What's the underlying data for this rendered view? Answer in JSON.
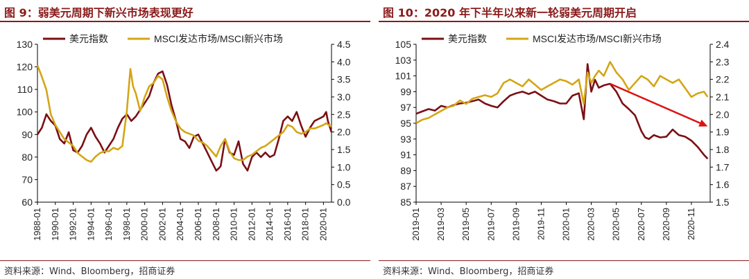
{
  "chart_data": [
    {
      "type": "line",
      "title": "图 9：弱美元周期下新兴市场表现更好",
      "source": "资料来源：Wind、Bloomberg，招商证券",
      "legend": [
        "美元指数",
        "MSCI发达市场/MSCI新兴市场"
      ],
      "colors": {
        "usd": "#7a0f14",
        "msci": "#d4a514"
      },
      "x_ticks": [
        "1988-01",
        "1990-01",
        "1992-01",
        "1994-01",
        "1996-01",
        "1998-01",
        "2000-01",
        "2002-01",
        "2004-01",
        "2006-01",
        "2008-01",
        "2010-01",
        "2012-01",
        "2014-01",
        "2016-01",
        "2018-01",
        "2020-01"
      ],
      "x_range": [
        1988.0,
        2020.9
      ],
      "y_left": {
        "ticks": [
          "60",
          "70",
          "80",
          "90",
          "100",
          "110",
          "120",
          "130"
        ],
        "range": [
          60,
          130
        ]
      },
      "y_right": {
        "ticks": [
          "0.0",
          "0.5",
          "1.0",
          "1.5",
          "2.0",
          "2.5",
          "3.0",
          "3.5",
          "4.0",
          "4.5"
        ],
        "range": [
          0,
          4.5
        ]
      },
      "series": [
        {
          "name": "美元指数",
          "axis": "left",
          "x": [
            1988.0,
            1988.5,
            1989.0,
            1989.5,
            1990.0,
            1990.5,
            1991.0,
            1991.5,
            1992.0,
            1992.5,
            1993.0,
            1993.5,
            1994.0,
            1994.5,
            1995.0,
            1995.5,
            1996.0,
            1996.5,
            1997.0,
            1997.5,
            1998.0,
            1998.5,
            1999.0,
            1999.5,
            2000.0,
            2000.5,
            2001.0,
            2001.5,
            2002.0,
            2002.5,
            2003.0,
            2003.5,
            2004.0,
            2004.5,
            2005.0,
            2005.5,
            2006.0,
            2006.5,
            2007.0,
            2007.5,
            2008.0,
            2008.3,
            2008.5,
            2009.0,
            2009.5,
            2010.0,
            2010.5,
            2011.0,
            2011.5,
            2012.0,
            2012.5,
            2013.0,
            2013.5,
            2014.0,
            2014.5,
            2015.0,
            2015.5,
            2016.0,
            2016.5,
            2017.0,
            2017.5,
            2018.0,
            2018.5,
            2019.0,
            2019.5,
            2020.0,
            2020.3,
            2020.5,
            2020.9
          ],
          "y": [
            90,
            93,
            99,
            96,
            94,
            88,
            86,
            91,
            83,
            82,
            85,
            90,
            93,
            89,
            86,
            82,
            85,
            88,
            93,
            97,
            99,
            96,
            98,
            101,
            104,
            107,
            113,
            117,
            118,
            112,
            103,
            96,
            88,
            87,
            84,
            89,
            90,
            86,
            82,
            78,
            74,
            75,
            76,
            88,
            82,
            81,
            87,
            77,
            74,
            80,
            82,
            80,
            82,
            80,
            81,
            88,
            96,
            98,
            96,
            100,
            94,
            89,
            93,
            96,
            97,
            98,
            100,
            96,
            91
          ]
        },
        {
          "name": "MSCI发达市场/MSCI新兴市场",
          "axis": "right",
          "x": [
            1988.0,
            1988.3,
            1988.6,
            1989.0,
            1989.5,
            1990.0,
            1990.5,
            1991.0,
            1991.5,
            1992.0,
            1992.5,
            1993.0,
            1993.5,
            1994.0,
            1994.5,
            1995.0,
            1995.5,
            1996.0,
            1996.5,
            1997.0,
            1997.5,
            1998.0,
            1998.4,
            1998.7,
            1999.0,
            1999.5,
            2000.0,
            2000.5,
            2001.0,
            2001.5,
            2002.0,
            2002.5,
            2003.0,
            2003.5,
            2004.0,
            2004.5,
            2005.0,
            2005.5,
            2006.0,
            2006.5,
            2007.0,
            2007.5,
            2008.0,
            2008.5,
            2009.0,
            2009.5,
            2010.0,
            2010.5,
            2011.0,
            2011.5,
            2012.0,
            2012.5,
            2013.0,
            2013.5,
            2014.0,
            2014.5,
            2015.0,
            2015.5,
            2016.0,
            2016.5,
            2017.0,
            2017.5,
            2018.0,
            2018.5,
            2019.0,
            2019.5,
            2020.0,
            2020.3,
            2020.6,
            2020.9
          ],
          "y": [
            3.9,
            3.7,
            3.5,
            3.2,
            2.5,
            2.2,
            2.0,
            1.8,
            1.7,
            1.6,
            1.4,
            1.3,
            1.2,
            1.15,
            1.3,
            1.4,
            1.45,
            1.45,
            1.55,
            1.5,
            1.6,
            2.6,
            3.8,
            3.3,
            3.1,
            2.6,
            3.0,
            3.3,
            3.4,
            3.6,
            3.5,
            3.0,
            2.6,
            2.3,
            2.1,
            2.0,
            1.95,
            1.9,
            1.75,
            1.7,
            1.6,
            1.45,
            1.3,
            1.6,
            1.8,
            1.45,
            1.25,
            1.2,
            1.2,
            1.3,
            1.35,
            1.45,
            1.55,
            1.6,
            1.7,
            1.8,
            1.9,
            2.0,
            2.2,
            2.15,
            2.0,
            1.95,
            2.0,
            2.1,
            2.1,
            2.15,
            2.2,
            2.25,
            2.2,
            2.15
          ]
        }
      ]
    },
    {
      "type": "line",
      "title": "图 10：2020 年下半年以来新一轮弱美元周期开启",
      "source": "资料来源：Wind、Bloomberg，招商证券",
      "legend": [
        "美元指数",
        "MSCI发达市场/MSCI新兴市场"
      ],
      "colors": {
        "usd": "#7a0f14",
        "msci": "#d4a514",
        "arrow": "#dd1111"
      },
      "x_ticks": [
        "2019-01",
        "2019-03",
        "2019-05",
        "2019-07",
        "2019-09",
        "2019-11",
        "2020-01",
        "2020-03",
        "2020-05",
        "2020-07",
        "2020-09",
        "2020-11"
      ],
      "x_range": [
        0,
        23.5
      ],
      "y_left": {
        "ticks": [
          "85",
          "87",
          "89",
          "91",
          "93",
          "95",
          "97",
          "99",
          "101",
          "103",
          "105"
        ],
        "range": [
          85,
          105
        ]
      },
      "y_right": {
        "ticks": [
          "1.5",
          "1.6",
          "1.7",
          "1.8",
          "1.9",
          "2.0",
          "2.1",
          "2.2",
          "2.3",
          "2.4"
        ],
        "range": [
          1.5,
          2.4
        ]
      },
      "series": [
        {
          "name": "美元指数",
          "axis": "left",
          "x": [
            0,
            0.5,
            1,
            1.5,
            2,
            2.5,
            3,
            3.5,
            4,
            4.5,
            5,
            5.5,
            6,
            6.5,
            7,
            7.5,
            8,
            8.5,
            9,
            9.5,
            10,
            10.5,
            11,
            11.5,
            12,
            12.5,
            13,
            13.4,
            13.7,
            14,
            14.3,
            14.6,
            15,
            15.5,
            16,
            16.5,
            17,
            17.5,
            18,
            18.3,
            18.6,
            19,
            19.5,
            20,
            20.5,
            21,
            21.5,
            22,
            22.5,
            23,
            23.3
          ],
          "y": [
            96.2,
            96.5,
            96.8,
            96.6,
            97.2,
            97.0,
            97.3,
            97.5,
            97.6,
            97.8,
            98.0,
            97.5,
            97.2,
            97.0,
            97.8,
            98.5,
            98.8,
            99.0,
            98.7,
            99.0,
            98.5,
            98.0,
            97.8,
            97.5,
            97.5,
            98.5,
            98.8,
            95.5,
            102.5,
            99.0,
            100.5,
            99.5,
            99.8,
            100.0,
            99.0,
            97.5,
            96.8,
            96.0,
            94.0,
            93.2,
            93.0,
            93.5,
            93.2,
            93.3,
            94.2,
            93.5,
            93.3,
            92.8,
            92.0,
            91.0,
            90.5
          ]
        },
        {
          "name": "MSCI发达市场/MSCI新兴市场",
          "axis": "right",
          "x": [
            0,
            0.5,
            1,
            1.5,
            2,
            2.5,
            3,
            3.5,
            4,
            4.5,
            5,
            5.5,
            6,
            6.5,
            7,
            7.5,
            8,
            8.5,
            9,
            9.5,
            10,
            10.5,
            11,
            11.5,
            12,
            12.5,
            13,
            13.4,
            13.7,
            14,
            14.3,
            14.6,
            15,
            15.5,
            16,
            16.5,
            17,
            17.5,
            18,
            18.5,
            19,
            19.5,
            20,
            20.5,
            21,
            21.5,
            22,
            22.5,
            23,
            23.3
          ],
          "y": [
            1.95,
            1.97,
            1.98,
            2.0,
            2.02,
            2.04,
            2.05,
            2.08,
            2.06,
            2.09,
            2.1,
            2.11,
            2.1,
            2.12,
            2.18,
            2.2,
            2.18,
            2.16,
            2.2,
            2.17,
            2.14,
            2.16,
            2.18,
            2.2,
            2.19,
            2.17,
            2.2,
            2.06,
            2.24,
            2.18,
            2.22,
            2.25,
            2.22,
            2.3,
            2.24,
            2.2,
            2.14,
            2.18,
            2.22,
            2.2,
            2.16,
            2.22,
            2.2,
            2.18,
            2.2,
            2.15,
            2.1,
            2.12,
            2.13,
            2.1
          ]
        }
      ]
    }
  ]
}
